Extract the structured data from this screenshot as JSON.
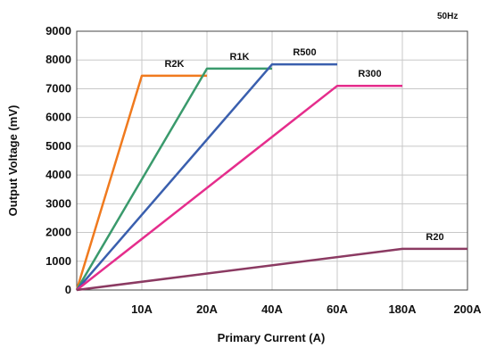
{
  "chart_data": {
    "type": "line",
    "note": "50Hz",
    "xlabel": "Primary Current (A)",
    "ylabel": "Output Voltage (mV)",
    "x_ticks": [
      "10A",
      "20A",
      "40A",
      "60A",
      "180A",
      "200A"
    ],
    "y_ticks": [
      "0",
      "1000",
      "2000",
      "3000",
      "4000",
      "5000",
      "6000",
      "7000",
      "8000",
      "9000"
    ],
    "ylim": [
      0,
      9000
    ],
    "grid": true,
    "series": [
      {
        "name": "R2K",
        "color": "#f07a1e",
        "points": [
          [
            "0A",
            0
          ],
          [
            "10A",
            7450
          ],
          [
            "20A",
            7450
          ]
        ]
      },
      {
        "name": "R1K",
        "color": "#3a9a6c",
        "points": [
          [
            "0A",
            0
          ],
          [
            "20A",
            7700
          ],
          [
            "40A",
            7700
          ]
        ]
      },
      {
        "name": "R500",
        "color": "#3a5fae",
        "points": [
          [
            "0A",
            0
          ],
          [
            "40A",
            7850
          ],
          [
            "60A",
            7850
          ]
        ]
      },
      {
        "name": "R300",
        "color": "#e52d8c",
        "points": [
          [
            "0A",
            0
          ],
          [
            "60A",
            7100
          ],
          [
            "180A",
            7100
          ]
        ]
      },
      {
        "name": "R20",
        "color": "#8b3a62",
        "points": [
          [
            "0A",
            0
          ],
          [
            "180A",
            1430
          ],
          [
            "200A",
            1430
          ]
        ]
      }
    ]
  }
}
